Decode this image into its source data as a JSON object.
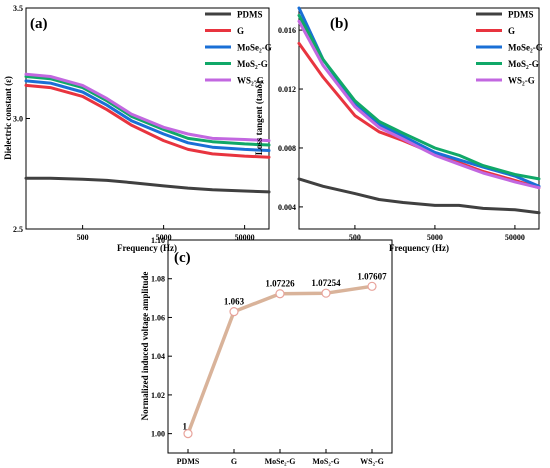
{
  "chart_data": [
    {
      "id": "a",
      "type": "line",
      "panel_label": "(a)",
      "xlabel": "Frequency (Hz)",
      "ylabel": "Dielectric constant (ε)",
      "xscale": "log",
      "xlim": [
        100,
        100000
      ],
      "ylim": [
        2.5,
        3.5
      ],
      "x_ticks": [
        500,
        5000,
        50000
      ],
      "x_tick_labels": [
        "500",
        "5000",
        "50000"
      ],
      "y_ticks": [
        2.5,
        3.0,
        3.5
      ],
      "y_tick_labels": [
        "2.5",
        "3.0",
        "3.5"
      ],
      "legend_position": "top-right",
      "x": [
        100,
        200,
        500,
        1000,
        2000,
        5000,
        10000,
        20000,
        50000,
        100000
      ],
      "series": [
        {
          "name": "PDMS",
          "color": "#404040",
          "values": [
            2.73,
            2.73,
            2.725,
            2.72,
            2.71,
            2.695,
            2.685,
            2.678,
            2.672,
            2.668
          ]
        },
        {
          "name": "G",
          "color": "#e8343f",
          "values": [
            3.15,
            3.14,
            3.1,
            3.04,
            2.97,
            2.9,
            2.86,
            2.84,
            2.83,
            2.825
          ]
        },
        {
          "name": "MoSe₂-G",
          "color": "#1a6fd6",
          "values": [
            3.17,
            3.16,
            3.12,
            3.06,
            2.99,
            2.93,
            2.89,
            2.87,
            2.86,
            2.855
          ]
        },
        {
          "name": "MoS₂-G",
          "color": "#10a868",
          "values": [
            3.19,
            3.18,
            3.14,
            3.08,
            3.01,
            2.95,
            2.91,
            2.895,
            2.885,
            2.88
          ]
        },
        {
          "name": "WS₂-G",
          "color": "#c267e0",
          "values": [
            3.2,
            3.19,
            3.15,
            3.09,
            3.02,
            2.96,
            2.93,
            2.91,
            2.905,
            2.9
          ]
        }
      ]
    },
    {
      "id": "b",
      "type": "line",
      "panel_label": "(b)",
      "xlabel": "Frequency (Hz)",
      "ylabel": "Loss tangent (tanδ)",
      "xscale": "log",
      "xlim": [
        100,
        100000
      ],
      "ylim": [
        0.0025,
        0.0175
      ],
      "x_ticks": [
        500,
        5000,
        50000
      ],
      "x_tick_labels": [
        "500",
        "5000",
        "50000"
      ],
      "y_ticks": [
        0.004,
        0.008,
        0.012,
        0.016
      ],
      "y_tick_labels": [
        "0.004",
        "0.008",
        "0.012",
        "0.016"
      ],
      "legend_position": "top-right",
      "x": [
        100,
        200,
        500,
        1000,
        2000,
        5000,
        10000,
        20000,
        50000,
        100000
      ],
      "series": [
        {
          "name": "PDMS",
          "color": "#404040",
          "values": [
            0.0059,
            0.0054,
            0.0049,
            0.0045,
            0.0043,
            0.0041,
            0.0041,
            0.0039,
            0.0038,
            0.0036
          ]
        },
        {
          "name": "G",
          "color": "#e8343f",
          "values": [
            0.0151,
            0.0128,
            0.0102,
            0.0091,
            0.0085,
            0.0076,
            0.007,
            0.0064,
            0.0058,
            0.0053
          ]
        },
        {
          "name": "MoSe₂-G",
          "color": "#1a6fd6",
          "values": [
            0.0175,
            0.014,
            0.011,
            0.0096,
            0.0088,
            0.0077,
            0.0072,
            0.0067,
            0.0061,
            0.0054
          ]
        },
        {
          "name": "MoS₂-G",
          "color": "#10a868",
          "values": [
            0.017,
            0.014,
            0.0112,
            0.0098,
            0.009,
            0.008,
            0.0075,
            0.0068,
            0.0062,
            0.0059
          ]
        },
        {
          "name": "WS₂-G",
          "color": "#c267e0",
          "values": [
            0.0166,
            0.0136,
            0.0108,
            0.0094,
            0.0086,
            0.0075,
            0.0069,
            0.0063,
            0.0057,
            0.0053
          ]
        }
      ]
    },
    {
      "id": "c",
      "type": "line",
      "panel_label": "(c)",
      "xlabel": "",
      "ylabel": "Normalized induced voltage amplitude",
      "ylim": [
        0.99,
        1.1
      ],
      "y_ticks": [
        1.0,
        1.02,
        1.04,
        1.06,
        1.08,
        1.1
      ],
      "y_tick_labels": [
        "1.00",
        "1.02",
        "1.04",
        "1.06",
        "1.08",
        "1.10"
      ],
      "categories": [
        "PDMS",
        "G",
        "MoSe₂-G",
        "MoS₂-G",
        "WS₂-G"
      ],
      "values": [
        1.0,
        1.063,
        1.07226,
        1.07254,
        1.07607
      ],
      "data_labels": [
        "1",
        "1.063",
        "1.07226",
        "1.07254",
        "1.07607"
      ],
      "line_color": "#d9b39a",
      "marker_edge_color": "#e8a39b"
    }
  ]
}
